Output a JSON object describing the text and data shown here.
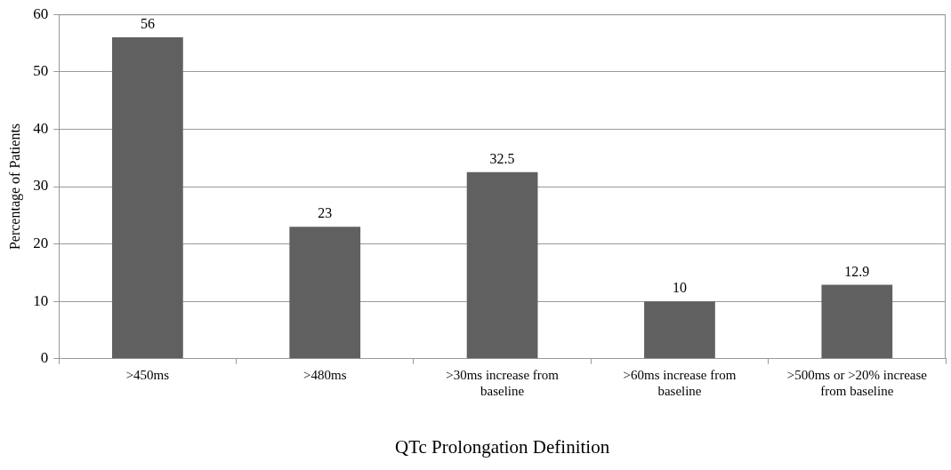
{
  "chart_data": {
    "type": "bar",
    "xlabel": "QTc Prolongation Definition",
    "ylabel": "Percentage of Patients",
    "categories": [
      ">450ms",
      ">480ms",
      ">30ms increase from baseline",
      ">60ms increase from baseline",
      ">500ms or >20% increase from baseline"
    ],
    "values": [
      56,
      23,
      32.5,
      10,
      12.9
    ],
    "color": "#606060",
    "ylim": [
      0,
      60
    ],
    "yticks": [
      0,
      10,
      20,
      30,
      40,
      50,
      60
    ],
    "grid": "y",
    "data_labels": true,
    "legend": false
  }
}
